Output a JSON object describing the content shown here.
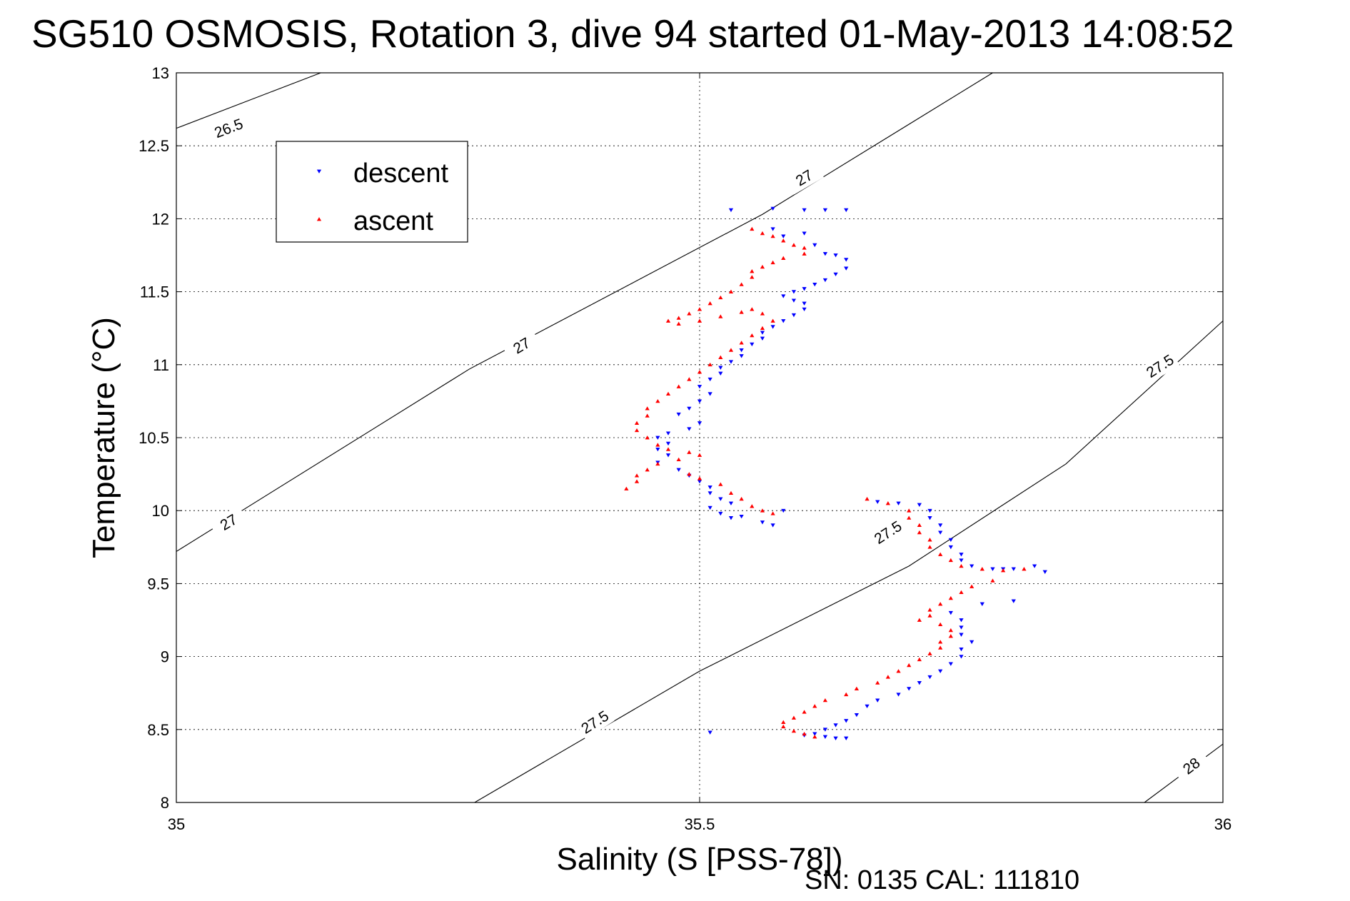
{
  "chart_data": {
    "type": "scatter",
    "title": "SG510 OSMOSIS, Rotation 3, dive 94 started 01-May-2013 14:08:52",
    "xlabel": "Salinity (S [PSS-78])",
    "ylabel": "Temperature (°C)",
    "xlim": [
      35,
      36
    ],
    "ylim": [
      8,
      13
    ],
    "x_ticks": [
      "35",
      "35.5",
      "36"
    ],
    "y_ticks": [
      "8",
      "8.5",
      "9",
      "9.5",
      "10",
      "10.5",
      "11",
      "11.5",
      "12",
      "12.5",
      "13"
    ],
    "grid": true,
    "legend_position": "top-left",
    "footer": "SN: 0135  CAL: 111810",
    "density_contours": [
      {
        "label": "26.5",
        "points": [
          [
            35.0,
            12.62
          ],
          [
            35.138,
            13.0
          ]
        ],
        "label_at": [
          35.05,
          12.62
        ]
      },
      {
        "label": "27",
        "points": [
          [
            35.0,
            9.72
          ],
          [
            35.28,
            10.97
          ],
          [
            35.56,
            12.03
          ],
          [
            35.78,
            13.0
          ]
        ],
        "label_at": [
          [
            35.05,
            9.92
          ],
          [
            35.33,
            11.13
          ],
          [
            35.6,
            12.28
          ]
        ]
      },
      {
        "label": "27.5",
        "points": [
          [
            35.285,
            8.0
          ],
          [
            35.5,
            8.9
          ],
          [
            35.7,
            9.62
          ],
          [
            35.85,
            10.32
          ],
          [
            36.0,
            11.3
          ]
        ],
        "label_at": [
          [
            35.4,
            8.55
          ],
          [
            35.68,
            9.85
          ],
          [
            35.94,
            10.99
          ]
        ]
      },
      {
        "label": "28",
        "points": [
          [
            35.925,
            8.0
          ],
          [
            36.0,
            8.4
          ]
        ],
        "label_at": [
          35.97,
          8.25
        ]
      }
    ],
    "series": [
      {
        "name": "descent",
        "color": "#0000ff",
        "marker": "triangle-down",
        "points": [
          [
            35.53,
            12.06
          ],
          [
            35.57,
            12.07
          ],
          [
            35.6,
            12.06
          ],
          [
            35.62,
            12.06
          ],
          [
            35.64,
            12.06
          ],
          [
            35.57,
            11.93
          ],
          [
            35.58,
            11.88
          ],
          [
            35.6,
            11.9
          ],
          [
            35.61,
            11.82
          ],
          [
            35.62,
            11.76
          ],
          [
            35.63,
            11.75
          ],
          [
            35.64,
            11.72
          ],
          [
            35.64,
            11.66
          ],
          [
            35.63,
            11.62
          ],
          [
            35.62,
            11.58
          ],
          [
            35.61,
            11.55
          ],
          [
            35.6,
            11.52
          ],
          [
            35.59,
            11.5
          ],
          [
            35.58,
            11.47
          ],
          [
            35.59,
            11.44
          ],
          [
            35.6,
            11.42
          ],
          [
            35.6,
            11.38
          ],
          [
            35.59,
            11.34
          ],
          [
            35.58,
            11.3
          ],
          [
            35.57,
            11.26
          ],
          [
            35.56,
            11.22
          ],
          [
            35.56,
            11.18
          ],
          [
            35.55,
            11.14
          ],
          [
            35.54,
            11.1
          ],
          [
            35.54,
            11.06
          ],
          [
            35.53,
            11.02
          ],
          [
            35.52,
            10.98
          ],
          [
            35.52,
            10.94
          ],
          [
            35.51,
            10.9
          ],
          [
            35.5,
            10.85
          ],
          [
            35.51,
            10.8
          ],
          [
            35.5,
            10.75
          ],
          [
            35.49,
            10.7
          ],
          [
            35.48,
            10.66
          ],
          [
            35.5,
            10.6
          ],
          [
            35.49,
            10.56
          ],
          [
            35.47,
            10.53
          ],
          [
            35.46,
            10.5
          ],
          [
            35.47,
            10.46
          ],
          [
            35.46,
            10.42
          ],
          [
            35.47,
            10.38
          ],
          [
            35.46,
            10.33
          ],
          [
            35.48,
            10.28
          ],
          [
            35.49,
            10.24
          ],
          [
            35.5,
            10.2
          ],
          [
            35.51,
            10.16
          ],
          [
            35.51,
            10.12
          ],
          [
            35.52,
            10.08
          ],
          [
            35.53,
            10.05
          ],
          [
            35.51,
            10.02
          ],
          [
            35.52,
            9.98
          ],
          [
            35.54,
            9.96
          ],
          [
            35.56,
            9.92
          ],
          [
            35.57,
            9.9
          ],
          [
            35.53,
            9.95
          ],
          [
            35.58,
            10.0
          ],
          [
            35.67,
            10.06
          ],
          [
            35.69,
            10.05
          ],
          [
            35.71,
            10.04
          ],
          [
            35.72,
            10.0
          ],
          [
            35.72,
            9.95
          ],
          [
            35.73,
            9.9
          ],
          [
            35.73,
            9.85
          ],
          [
            35.74,
            9.8
          ],
          [
            35.74,
            9.75
          ],
          [
            35.75,
            9.7
          ],
          [
            35.75,
            9.66
          ],
          [
            35.76,
            9.62
          ],
          [
            35.78,
            9.6
          ],
          [
            35.8,
            9.6
          ],
          [
            35.82,
            9.62
          ],
          [
            35.83,
            9.58
          ],
          [
            35.79,
            9.6
          ],
          [
            35.8,
            9.38
          ],
          [
            35.77,
            9.36
          ],
          [
            35.74,
            9.3
          ],
          [
            35.75,
            9.25
          ],
          [
            35.75,
            9.2
          ],
          [
            35.75,
            9.15
          ],
          [
            35.76,
            9.1
          ],
          [
            35.75,
            9.05
          ],
          [
            35.75,
            9.0
          ],
          [
            35.74,
            8.95
          ],
          [
            35.73,
            8.9
          ],
          [
            35.72,
            8.86
          ],
          [
            35.71,
            8.82
          ],
          [
            35.7,
            8.78
          ],
          [
            35.69,
            8.74
          ],
          [
            35.67,
            8.7
          ],
          [
            35.66,
            8.66
          ],
          [
            35.65,
            8.6
          ],
          [
            35.64,
            8.56
          ],
          [
            35.63,
            8.53
          ],
          [
            35.62,
            8.5
          ],
          [
            35.61,
            8.47
          ],
          [
            35.62,
            8.45
          ],
          [
            35.63,
            8.44
          ],
          [
            35.64,
            8.44
          ],
          [
            35.6,
            8.46
          ],
          [
            35.51,
            8.48
          ]
        ]
      },
      {
        "name": "ascent",
        "color": "#ff0000",
        "marker": "triangle-up",
        "points": [
          [
            35.55,
            11.93
          ],
          [
            35.56,
            11.9
          ],
          [
            35.57,
            11.88
          ],
          [
            35.58,
            11.85
          ],
          [
            35.59,
            11.82
          ],
          [
            35.6,
            11.8
          ],
          [
            35.6,
            11.76
          ],
          [
            35.58,
            11.73
          ],
          [
            35.57,
            11.7
          ],
          [
            35.56,
            11.67
          ],
          [
            35.55,
            11.64
          ],
          [
            35.55,
            11.6
          ],
          [
            35.54,
            11.55
          ],
          [
            35.53,
            11.5
          ],
          [
            35.52,
            11.46
          ],
          [
            35.51,
            11.42
          ],
          [
            35.5,
            11.38
          ],
          [
            35.49,
            11.35
          ],
          [
            35.48,
            11.32
          ],
          [
            35.47,
            11.3
          ],
          [
            35.48,
            11.28
          ],
          [
            35.5,
            11.3
          ],
          [
            35.52,
            11.33
          ],
          [
            35.54,
            11.36
          ],
          [
            35.55,
            11.38
          ],
          [
            35.56,
            11.35
          ],
          [
            35.57,
            11.3
          ],
          [
            35.56,
            11.25
          ],
          [
            35.55,
            11.2
          ],
          [
            35.54,
            11.15
          ],
          [
            35.53,
            11.1
          ],
          [
            35.52,
            11.05
          ],
          [
            35.51,
            11.0
          ],
          [
            35.5,
            10.95
          ],
          [
            35.49,
            10.9
          ],
          [
            35.48,
            10.85
          ],
          [
            35.47,
            10.8
          ],
          [
            35.46,
            10.75
          ],
          [
            35.45,
            10.7
          ],
          [
            35.45,
            10.65
          ],
          [
            35.44,
            10.6
          ],
          [
            35.44,
            10.55
          ],
          [
            35.45,
            10.5
          ],
          [
            35.46,
            10.45
          ],
          [
            35.47,
            10.42
          ],
          [
            35.49,
            10.4
          ],
          [
            35.5,
            10.38
          ],
          [
            35.48,
            10.35
          ],
          [
            35.46,
            10.32
          ],
          [
            35.45,
            10.28
          ],
          [
            35.44,
            10.24
          ],
          [
            35.44,
            10.2
          ],
          [
            35.43,
            10.15
          ],
          [
            35.49,
            10.25
          ],
          [
            35.5,
            10.22
          ],
          [
            35.52,
            10.18
          ],
          [
            35.53,
            10.12
          ],
          [
            35.54,
            10.08
          ],
          [
            35.55,
            10.03
          ],
          [
            35.56,
            10.0
          ],
          [
            35.57,
            9.98
          ],
          [
            35.66,
            10.08
          ],
          [
            35.68,
            10.05
          ],
          [
            35.7,
            10.0
          ],
          [
            35.7,
            9.95
          ],
          [
            35.71,
            9.9
          ],
          [
            35.71,
            9.85
          ],
          [
            35.72,
            9.8
          ],
          [
            35.72,
            9.75
          ],
          [
            35.73,
            9.7
          ],
          [
            35.74,
            9.66
          ],
          [
            35.75,
            9.62
          ],
          [
            35.77,
            9.6
          ],
          [
            35.79,
            9.59
          ],
          [
            35.81,
            9.6
          ],
          [
            35.78,
            9.52
          ],
          [
            35.76,
            9.48
          ],
          [
            35.75,
            9.44
          ],
          [
            35.74,
            9.4
          ],
          [
            35.73,
            9.36
          ],
          [
            35.72,
            9.32
          ],
          [
            35.72,
            9.28
          ],
          [
            35.71,
            9.25
          ],
          [
            35.73,
            9.22
          ],
          [
            35.74,
            9.18
          ],
          [
            35.74,
            9.14
          ],
          [
            35.73,
            9.1
          ],
          [
            35.73,
            9.06
          ],
          [
            35.72,
            9.02
          ],
          [
            35.71,
            8.98
          ],
          [
            35.7,
            8.94
          ],
          [
            35.69,
            8.9
          ],
          [
            35.68,
            8.86
          ],
          [
            35.67,
            8.82
          ],
          [
            35.65,
            8.78
          ],
          [
            35.64,
            8.74
          ],
          [
            35.62,
            8.7
          ],
          [
            35.61,
            8.66
          ],
          [
            35.6,
            8.62
          ],
          [
            35.59,
            8.58
          ],
          [
            35.58,
            8.55
          ],
          [
            35.58,
            8.52
          ],
          [
            35.59,
            8.49
          ],
          [
            35.6,
            8.47
          ],
          [
            35.61,
            8.45
          ]
        ]
      }
    ]
  }
}
